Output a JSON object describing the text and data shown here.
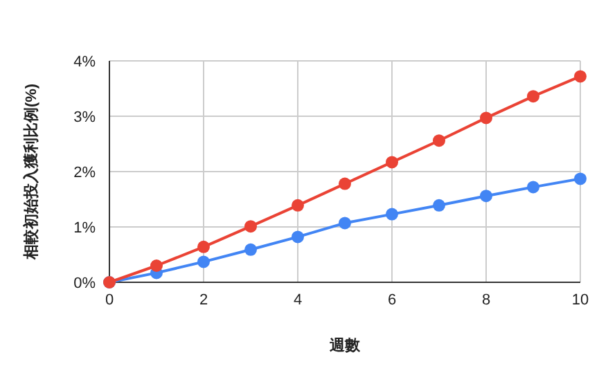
{
  "chart_data": {
    "type": "line",
    "xlabel": "週數",
    "ylabel": "相較初始投入獲利比例(%)",
    "x": [
      0,
      1,
      2,
      3,
      4,
      5,
      6,
      7,
      8,
      9,
      10
    ],
    "series": [
      {
        "color": "#4285f4",
        "values": [
          0,
          0.17,
          0.37,
          0.59,
          0.82,
          1.07,
          1.23,
          1.39,
          1.56,
          1.72,
          1.87
        ]
      },
      {
        "color": "#ea4335",
        "values": [
          0,
          0.3,
          0.64,
          1.01,
          1.39,
          1.78,
          2.17,
          2.56,
          2.97,
          3.36,
          3.72
        ]
      }
    ],
    "xlim": [
      0,
      10
    ],
    "xticks": [
      0,
      2,
      4,
      6,
      8,
      10
    ],
    "ylim": [
      0,
      4
    ],
    "yticks": [
      {
        "value": 0,
        "label": "0%"
      },
      {
        "value": 1,
        "label": "1%"
      },
      {
        "value": 2,
        "label": "2%"
      },
      {
        "value": 3,
        "label": "3%"
      },
      {
        "value": 4,
        "label": "4%"
      }
    ],
    "grid": true,
    "marker": "circle",
    "line_style": "solid"
  }
}
